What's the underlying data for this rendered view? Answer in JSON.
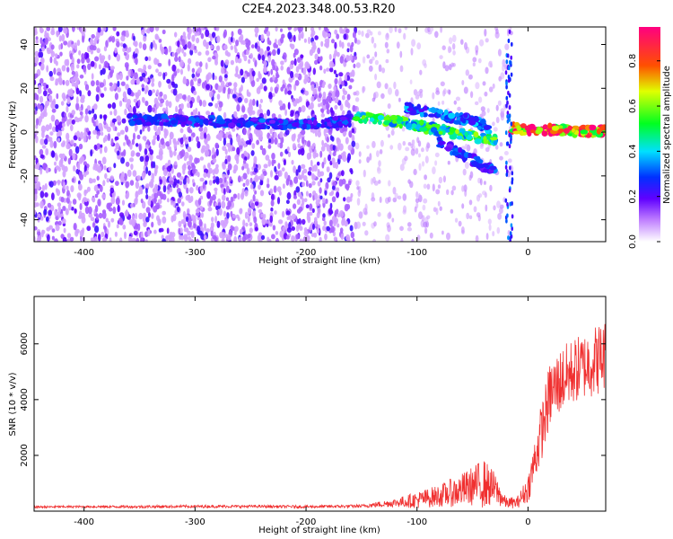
{
  "figure": {
    "title": "C2E4.2023.348.00.53.R20"
  },
  "chart_data": [
    {
      "type": "heatmap",
      "xlabel": "Height of straight line (km)",
      "ylabel": "Frequency (Hz)",
      "xlim": [
        -445,
        70
      ],
      "ylim": [
        -50,
        48
      ],
      "xticks": [
        -400,
        -300,
        -200,
        -100,
        0
      ],
      "yticks": [
        -40,
        -20,
        0,
        20,
        40
      ],
      "colorbar": {
        "label": "Normalized spectral amplitude",
        "range": [
          0.0,
          0.95
        ],
        "ticks": [
          0.0,
          0.2,
          0.4,
          0.6,
          0.8
        ],
        "tick_labels": [
          "0.0",
          "0.2",
          "0.4",
          "0.6",
          "0.8"
        ]
      },
      "features": [
        {
          "kind": "noise_cloud",
          "x_range": [
            -445,
            -155
          ],
          "freq_range": [
            -50,
            48
          ]
        },
        {
          "kind": "sparse_speckle",
          "x_range": [
            -155,
            -15
          ],
          "freq_range": [
            -50,
            48
          ]
        },
        {
          "kind": "band",
          "x": [
            -360,
            -300,
            -250,
            -200,
            -160
          ],
          "freq": [
            6,
            5,
            4,
            4,
            5
          ],
          "amplitude": 0.3
        },
        {
          "kind": "band",
          "x": [
            -155,
            -120,
            -100,
            -80,
            -60,
            -40,
            -28
          ],
          "freq": [
            7,
            5,
            3,
            1,
            -1,
            -3,
            -4
          ],
          "amplitude": 0.55
        },
        {
          "kind": "band",
          "x": [
            -110,
            -90,
            -70,
            -50,
            -35
          ],
          "freq": [
            11,
            9,
            7,
            5,
            2
          ],
          "amplitude": 0.35
        },
        {
          "kind": "band",
          "x": [
            -80,
            -60,
            -45,
            -30
          ],
          "freq": [
            -5,
            -10,
            -14,
            -18
          ],
          "amplitude": 0.3
        },
        {
          "kind": "band",
          "x": [
            -15,
            0,
            20,
            40,
            60,
            70
          ],
          "freq": [
            2,
            1,
            1,
            0.5,
            0.5,
            0.5
          ],
          "amplitude": 0.9
        },
        {
          "kind": "vertical_spike",
          "x": [
            -20,
            -14
          ],
          "freq": [
            -50,
            48
          ],
          "amplitude": 0.3
        }
      ]
    },
    {
      "type": "line",
      "xlabel": "Height of straight line (km)",
      "ylabel": "SNR (10 * v/v)",
      "xlim": [
        -445,
        70
      ],
      "ylim": [
        0,
        7700
      ],
      "xticks": [
        -400,
        -300,
        -200,
        -100,
        0
      ],
      "yticks": [
        2000,
        4000,
        6000
      ],
      "series": [
        {
          "color": "#f03030",
          "x": [
            -445,
            -400,
            -350,
            -300,
            -250,
            -200,
            -150,
            -120,
            -100,
            -80,
            -60,
            -50,
            -40,
            -30,
            -20,
            -10,
            0,
            10,
            20,
            30,
            40,
            50,
            60,
            70
          ],
          "y": [
            150,
            160,
            160,
            170,
            170,
            160,
            180,
            300,
            400,
            550,
            750,
            900,
            1000,
            800,
            300,
            300,
            800,
            2500,
            4200,
            4700,
            5000,
            5200,
            5400,
            5600
          ],
          "noise": [
            40,
            40,
            50,
            50,
            50,
            50,
            60,
            150,
            300,
            400,
            600,
            700,
            900,
            600,
            200,
            200,
            500,
            1000,
            1200,
            1200,
            1200,
            1200,
            1300,
            1300
          ]
        }
      ]
    }
  ]
}
